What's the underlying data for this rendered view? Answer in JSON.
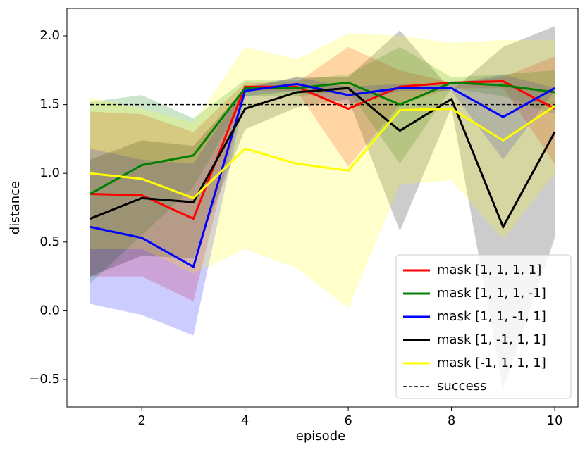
{
  "chart_data": {
    "type": "line",
    "xlabel": "episode",
    "ylabel": "distance",
    "x": [
      1,
      2,
      3,
      4,
      5,
      6,
      7,
      8,
      9,
      10
    ],
    "xlim": [
      0.55,
      10.45
    ],
    "xticks": [
      2,
      4,
      6,
      8,
      10
    ],
    "ylim": [
      -0.7,
      2.2
    ],
    "yticks": [
      {
        "value": -0.5,
        "label": "−0.5"
      },
      {
        "value": 0,
        "label": "0.0"
      },
      0.5,
      {
        "value": 1,
        "label": "1.0"
      },
      1.5,
      {
        "value": 2,
        "label": "2.0"
      }
    ],
    "legend": "lower right",
    "band_opacity": 0.2,
    "series": [
      {
        "name": "mask [1, 1, 1, 1]",
        "color": "#ff0000",
        "values": [
          0.85,
          0.84,
          0.67,
          1.63,
          1.63,
          1.47,
          1.63,
          1.66,
          1.67,
          1.47
        ],
        "lower": [
          0.25,
          0.25,
          0.07,
          1.6,
          1.6,
          1.05,
          1.5,
          1.62,
          1.62,
          1.07
        ],
        "upper": [
          1.45,
          1.43,
          1.3,
          1.66,
          1.66,
          1.92,
          1.75,
          1.66,
          1.7,
          1.85
        ]
      },
      {
        "name": "mask [1, 1, 1, -1]",
        "color": "#008000",
        "values": [
          0.85,
          1.06,
          1.13,
          1.62,
          1.62,
          1.66,
          1.5,
          1.66,
          1.64,
          1.59
        ],
        "lower": [
          0.2,
          0.55,
          0.9,
          1.56,
          1.56,
          1.6,
          1.07,
          1.62,
          1.56,
          1.43
        ],
        "upper": [
          1.52,
          1.57,
          1.4,
          1.68,
          1.68,
          1.72,
          1.92,
          1.7,
          1.72,
          1.75
        ]
      },
      {
        "name": "mask [1, 1, -1, 1]",
        "color": "#0000ff",
        "values": [
          0.61,
          0.53,
          0.32,
          1.6,
          1.65,
          1.57,
          1.62,
          1.62,
          1.41,
          1.62
        ],
        "lower": [
          0.05,
          -0.03,
          -0.18,
          1.56,
          1.6,
          1.5,
          1.6,
          1.6,
          1.1,
          1.6
        ],
        "upper": [
          1.18,
          1.1,
          1.07,
          1.63,
          1.7,
          1.63,
          1.65,
          1.65,
          1.72,
          1.62
        ]
      },
      {
        "name": "mask [1, -1, 1, 1]",
        "color": "#000000",
        "values": [
          0.67,
          0.82,
          0.79,
          1.47,
          1.59,
          1.62,
          1.31,
          1.54,
          0.61,
          1.3
        ],
        "lower": [
          0.25,
          0.4,
          0.38,
          1.32,
          1.48,
          1.54,
          0.58,
          1.48,
          -0.57,
          0.53
        ],
        "upper": [
          1.1,
          1.24,
          1.2,
          1.62,
          1.7,
          1.7,
          2.04,
          1.6,
          1.92,
          2.07
        ]
      },
      {
        "name": "mask [-1, 1, 1, 1]",
        "color": "#ffff00",
        "values": [
          1.0,
          0.96,
          0.82,
          1.18,
          1.07,
          1.02,
          1.46,
          1.47,
          1.24,
          1.49
        ],
        "lower": [
          0.45,
          0.45,
          0.27,
          0.45,
          0.31,
          0.02,
          0.92,
          0.95,
          0.52,
          1.0
        ],
        "upper": [
          1.55,
          1.47,
          1.37,
          1.92,
          1.83,
          2.02,
          2.0,
          1.95,
          1.97,
          1.97
        ]
      }
    ],
    "reference_lines": [
      {
        "name": "success",
        "value": 1.5,
        "color": "#000000"
      }
    ]
  }
}
